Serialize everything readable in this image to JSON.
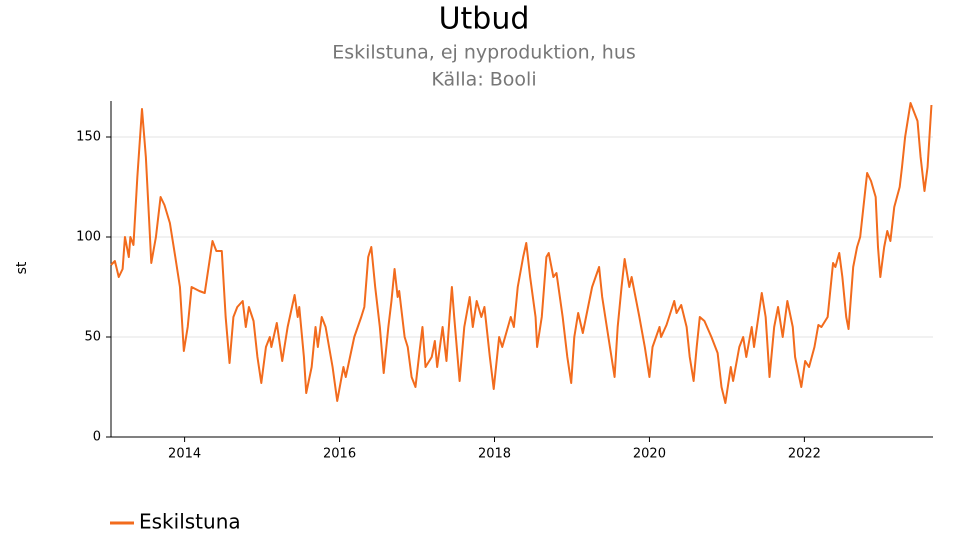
{
  "chart_data": {
    "type": "line",
    "title": "Utbud",
    "subtitle": [
      "Eskilstuna, ej nyproduktion, hus",
      "Källa: Booli"
    ],
    "y_label": "st",
    "x": [
      2013.05,
      2013.1,
      2013.15,
      2013.2,
      2013.23,
      2013.28,
      2013.3,
      2013.34,
      2013.39,
      2013.45,
      2013.5,
      2013.54,
      2013.57,
      2013.63,
      2013.69,
      2013.74,
      2013.81,
      2013.88,
      2013.94,
      2013.99,
      2014.04,
      2014.09,
      2014.19,
      2014.26,
      2014.36,
      2014.41,
      2014.48,
      2014.53,
      2014.58,
      2014.63,
      2014.68,
      2014.75,
      2014.79,
      2014.83,
      2014.89,
      2014.94,
      2014.99,
      2015.05,
      2015.1,
      2015.12,
      2015.19,
      2015.26,
      2015.33,
      2015.42,
      2015.46,
      2015.48,
      2015.54,
      2015.57,
      2015.64,
      2015.69,
      2015.72,
      2015.77,
      2015.82,
      2015.91,
      2015.97,
      2016.05,
      2016.08,
      2016.19,
      2016.28,
      2016.32,
      2016.37,
      2016.41,
      2016.46,
      2016.52,
      2016.57,
      2016.63,
      2016.67,
      2016.71,
      2016.75,
      2016.77,
      2016.84,
      2016.88,
      2016.93,
      2016.98,
      2017.03,
      2017.07,
      2017.11,
      2017.19,
      2017.23,
      2017.26,
      2017.33,
      2017.38,
      2017.42,
      2017.45,
      2017.48,
      2017.55,
      2017.61,
      2017.68,
      2017.72,
      2017.77,
      2017.83,
      2017.87,
      2017.94,
      2017.99,
      2018.06,
      2018.1,
      2018.21,
      2018.25,
      2018.3,
      2018.37,
      2018.41,
      2018.46,
      2018.53,
      2018.55,
      2018.61,
      2018.67,
      2018.7,
      2018.76,
      2018.8,
      2018.88,
      2018.94,
      2018.99,
      2019.03,
      2019.08,
      2019.14,
      2019.26,
      2019.35,
      2019.39,
      2019.45,
      2019.55,
      2019.59,
      2019.64,
      2019.68,
      2019.74,
      2019.77,
      2019.87,
      2019.94,
      2020.0,
      2020.04,
      2020.13,
      2020.15,
      2020.22,
      2020.32,
      2020.35,
      2020.41,
      2020.48,
      2020.52,
      2020.57,
      2020.61,
      2020.65,
      2020.71,
      2020.8,
      2020.88,
      2020.93,
      2020.98,
      2021.05,
      2021.08,
      2021.16,
      2021.21,
      2021.25,
      2021.32,
      2021.35,
      2021.45,
      2021.5,
      2021.55,
      2021.61,
      2021.66,
      2021.72,
      2021.78,
      2021.85,
      2021.88,
      2021.96,
      2022.01,
      2022.06,
      2022.13,
      2022.18,
      2022.22,
      2022.3,
      2022.37,
      2022.4,
      2022.45,
      2022.49,
      2022.54,
      2022.57,
      2022.63,
      2022.68,
      2022.72,
      2022.79,
      2022.81,
      2022.86,
      2022.92,
      2022.95,
      2022.98,
      2023.03,
      2023.07,
      2023.11,
      2023.16,
      2023.23,
      2023.26,
      2023.3,
      2023.37,
      2023.42,
      2023.46,
      2023.5,
      2023.55,
      2023.59,
      2023.64
    ],
    "series": [
      {
        "name": "Eskilstuna",
        "color": "#f26b1d",
        "values": [
          86,
          88,
          80,
          84,
          100,
          90,
          100,
          96,
          130,
          164,
          140,
          110,
          87,
          100,
          120,
          116,
          107,
          90,
          75,
          43,
          55,
          75,
          73,
          72,
          98,
          93,
          93,
          60,
          37,
          60,
          65,
          68,
          55,
          65,
          58,
          40,
          27,
          45,
          50,
          45,
          57,
          38,
          55,
          71,
          60,
          65,
          40,
          22,
          35,
          55,
          45,
          60,
          55,
          35,
          18,
          35,
          30,
          50,
          60,
          65,
          90,
          95,
          75,
          55,
          32,
          55,
          68,
          84,
          70,
          73,
          50,
          45,
          30,
          25,
          42,
          55,
          35,
          40,
          48,
          35,
          55,
          38,
          60,
          75,
          60,
          28,
          55,
          70,
          55,
          68,
          60,
          65,
          40,
          24,
          50,
          45,
          60,
          55,
          75,
          90,
          97,
          80,
          60,
          45,
          60,
          90,
          92,
          80,
          82,
          60,
          40,
          27,
          50,
          62,
          52,
          75,
          85,
          70,
          55,
          30,
          55,
          75,
          89,
          75,
          80,
          60,
          45,
          30,
          45,
          55,
          50,
          56,
          68,
          62,
          66,
          55,
          40,
          28,
          45,
          60,
          58,
          50,
          42,
          25,
          17,
          35,
          28,
          45,
          50,
          40,
          55,
          45,
          72,
          60,
          30,
          55,
          65,
          50,
          68,
          55,
          40,
          25,
          38,
          35,
          45,
          56,
          55,
          60,
          87,
          85,
          92,
          80,
          60,
          54,
          85,
          95,
          100,
          125,
          132,
          128,
          120,
          95,
          80,
          95,
          103,
          98,
          115,
          125,
          135,
          150,
          167,
          162,
          158,
          140,
          123,
          135,
          166
        ]
      }
    ],
    "xlim": [
      2013.05,
      2023.66
    ],
    "xticks": [
      2014,
      2016,
      2018,
      2020,
      2022
    ],
    "ylim": [
      0,
      168
    ],
    "yticks": [
      0,
      50,
      100,
      150
    ],
    "grid": true
  }
}
